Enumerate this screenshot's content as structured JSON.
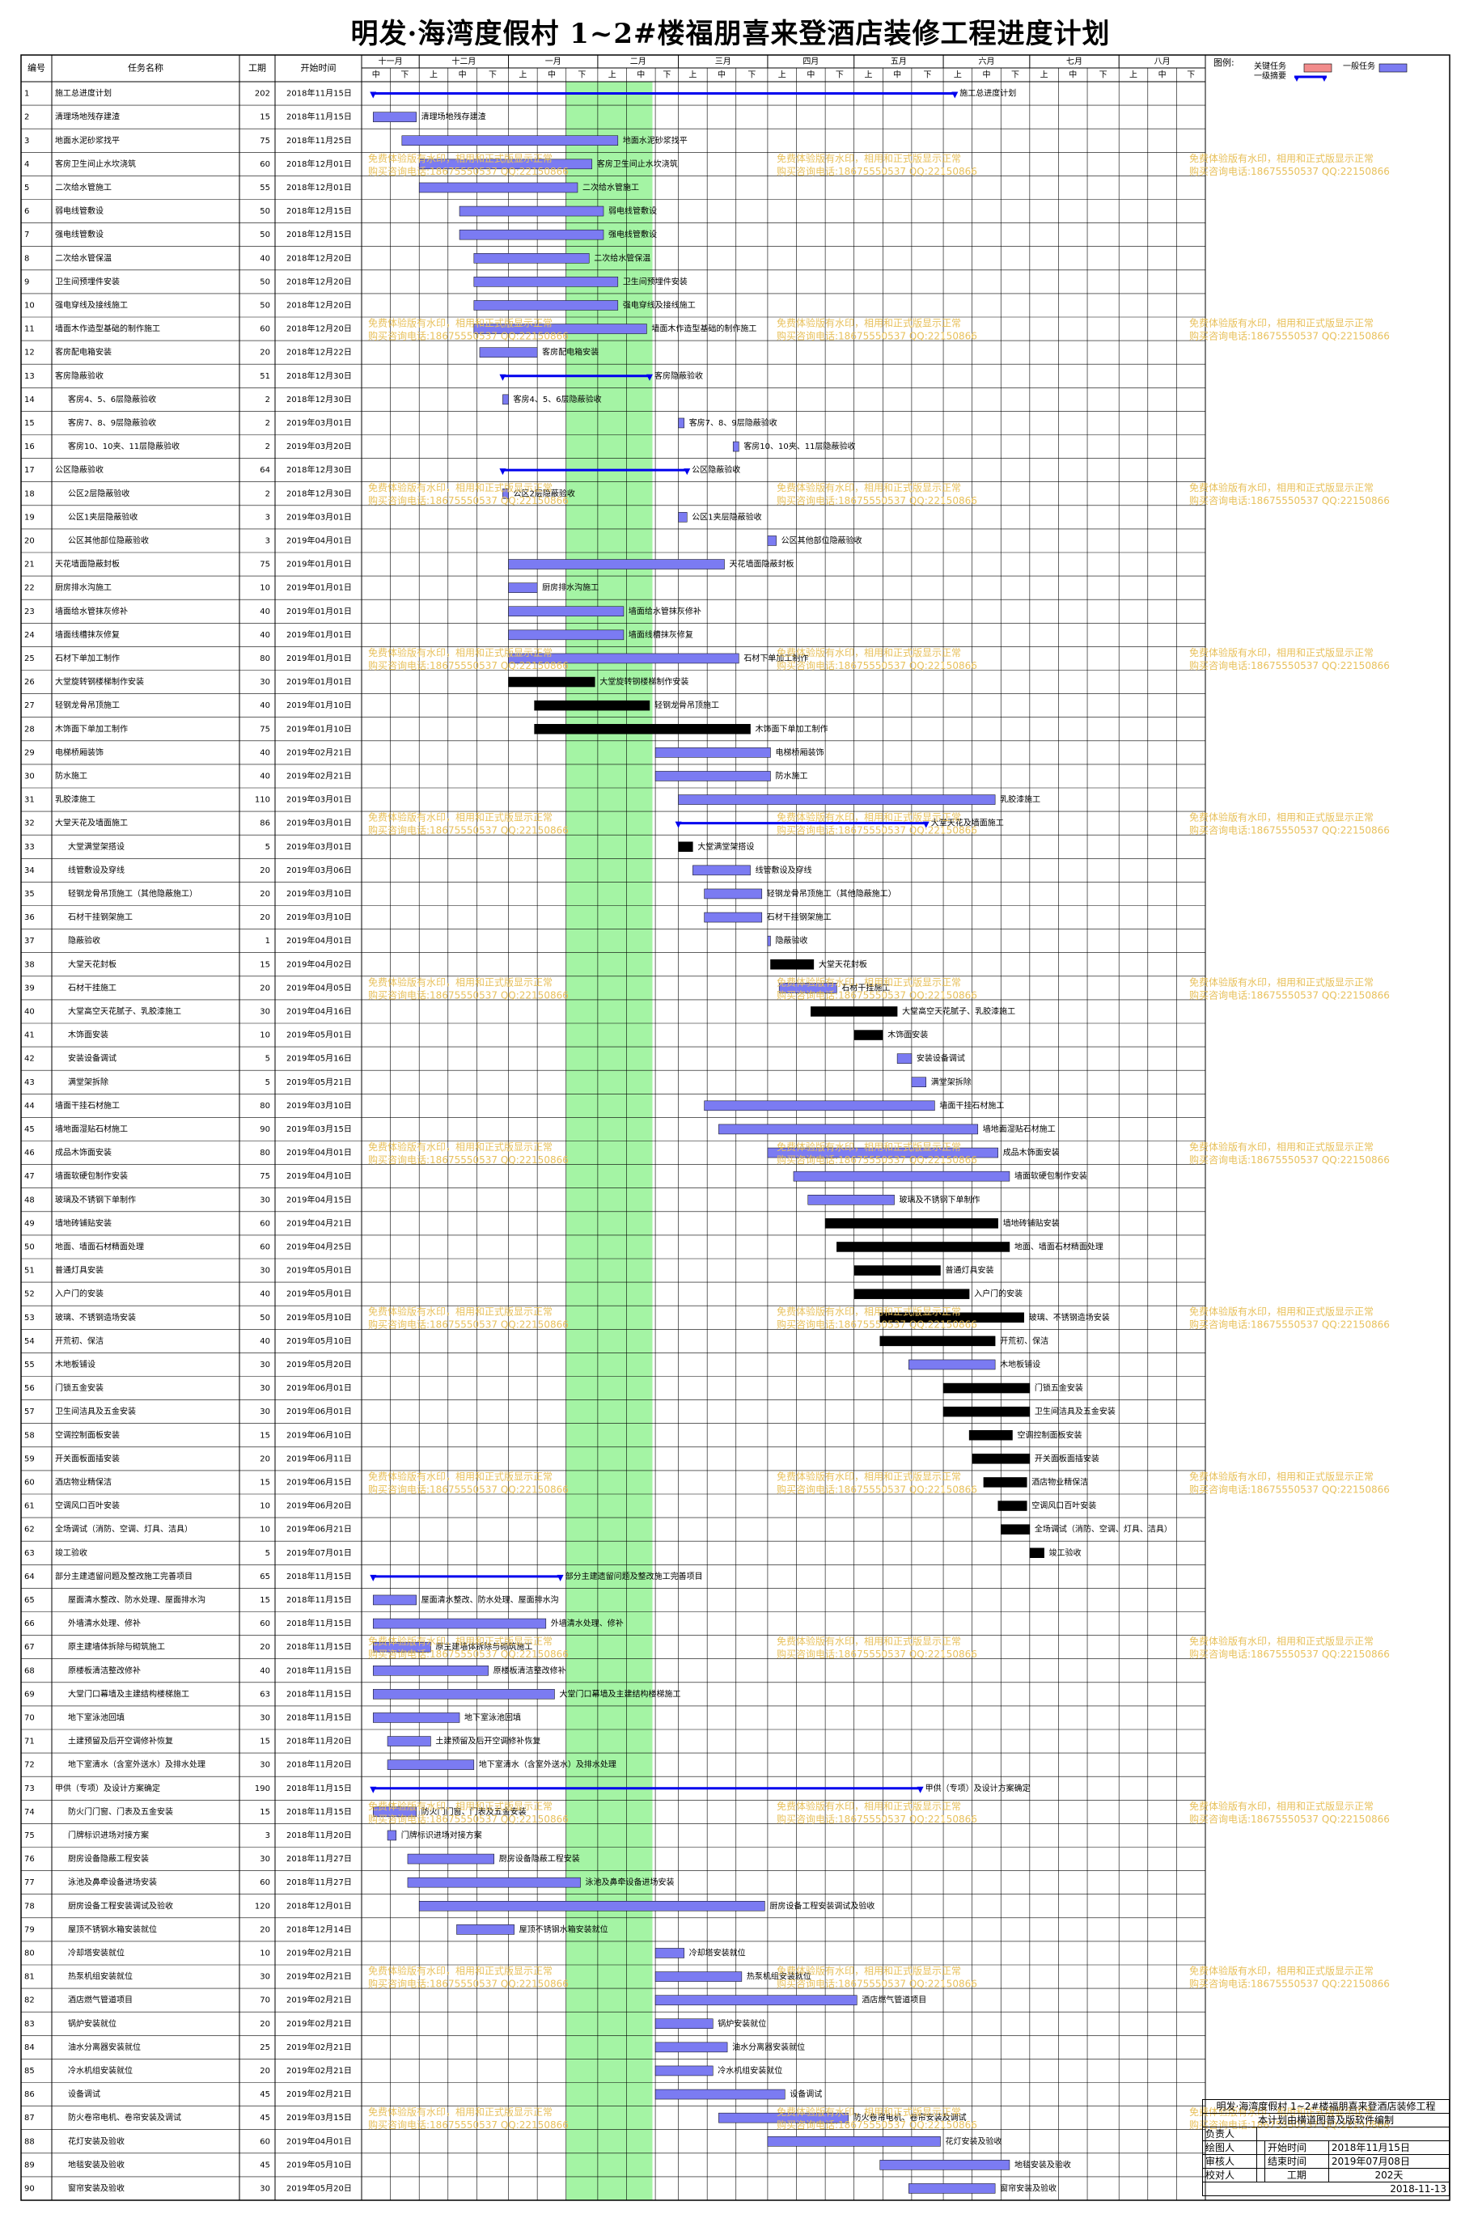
{
  "title": "明发·海湾度假村 1~2#楼福朋喜来登酒店装修工程进度计划",
  "headers": {
    "id": "编号",
    "name": "任务名称",
    "duration": "工期",
    "start": "开始时间"
  },
  "months": [
    "十一月",
    "十二月",
    "一月",
    "二月",
    "三月",
    "四月",
    "五月",
    "六月",
    "七月",
    "八月"
  ],
  "periods": [
    "中",
    "下",
    "上",
    "中",
    "下",
    "上",
    "中",
    "下",
    "上",
    "中",
    "下",
    "上",
    "中",
    "下",
    "上",
    "中",
    "下",
    "上",
    "中",
    "下",
    "上",
    "中",
    "下",
    "上",
    "中",
    "下",
    "上",
    "中",
    "下"
  ],
  "legend": {
    "label": "图例:",
    "critical": "关键任务",
    "normal": "一般任务",
    "summary": "一级摘要"
  },
  "colors": {
    "normal": "#7b7bf2",
    "critical": "#000000",
    "summary": "#0000ee",
    "holiday": "#a4f4a4",
    "critical_legend": "#f28c8c"
  },
  "watermark": {
    "line1": "免费体验版有水印，相用和正式版显示正常",
    "line2": "购买咨询电话:18675550537 QQ:22150866"
  },
  "info": {
    "project": "明发·海湾度假村 1~2#楼福朋喜来登酒店装修工程",
    "subtitle": "本计划由横道图普及版软件编制",
    "responsible_label": "负责人",
    "drawer_label": "绘图人",
    "reviewer_label": "审核人",
    "checker_label": "校对人",
    "start_label": "开始时间",
    "start_value": "2018年11月15日",
    "end_label": "结束时间",
    "end_value": "2019年07月08日",
    "duration_label": "工期",
    "duration_value": "202天",
    "date": "2018-11-13"
  },
  "chart_data": {
    "type": "gantt",
    "timeline_start": "2018-11-11",
    "timeline_end": "2019-08-31",
    "holiday_band": [
      "2019-01-21",
      "2019-02-20"
    ],
    "tasks": [
      {
        "id": 1,
        "name": "施工总进度计划",
        "duration": 202,
        "start": "2018年11月15日",
        "type": "summary",
        "label": "施工总进度计划"
      },
      {
        "id": 2,
        "name": "清理场地残存建渣",
        "duration": 15,
        "start": "2018年11月15日",
        "type": "normal",
        "label": "清理场地残存建渣"
      },
      {
        "id": 3,
        "name": "地面水泥砂浆找平",
        "duration": 75,
        "start": "2018年11月25日",
        "type": "normal",
        "label": "地面水泥砂浆找平"
      },
      {
        "id": 4,
        "name": "客房卫生间止水坎浇筑",
        "duration": 60,
        "start": "2018年12月01日",
        "type": "normal",
        "label": "客房卫生间止水坎浇筑"
      },
      {
        "id": 5,
        "name": "二次给水管施工",
        "duration": 55,
        "start": "2018年12月01日",
        "type": "normal",
        "label": "二次给水管施工"
      },
      {
        "id": 6,
        "name": "弱电线管敷设",
        "duration": 50,
        "start": "2018年12月15日",
        "type": "normal",
        "label": "弱电线管敷设"
      },
      {
        "id": 7,
        "name": "强电线管敷设",
        "duration": 50,
        "start": "2018年12月15日",
        "type": "normal",
        "label": "强电线管敷设"
      },
      {
        "id": 8,
        "name": "二次给水管保温",
        "duration": 40,
        "start": "2018年12月20日",
        "type": "normal",
        "label": "二次给水管保温"
      },
      {
        "id": 9,
        "name": "卫生间预埋件安装",
        "duration": 50,
        "start": "2018年12月20日",
        "type": "normal",
        "label": "卫生间预埋件安装"
      },
      {
        "id": 10,
        "name": "强电穿线及接线施工",
        "duration": 50,
        "start": "2018年12月20日",
        "type": "normal",
        "label": "强电穿线及接线施工"
      },
      {
        "id": 11,
        "name": "墙面木作造型基础的制作施工",
        "duration": 60,
        "start": "2018年12月20日",
        "type": "normal",
        "label": "墙面木作造型基础的制作施工"
      },
      {
        "id": 12,
        "name": "客房配电箱安装",
        "duration": 20,
        "start": "2018年12月22日",
        "type": "normal",
        "label": "客房配电箱安装"
      },
      {
        "id": 13,
        "name": "客房隐蔽验收",
        "duration": 51,
        "start": "2018年12月30日",
        "type": "summary",
        "label": "客房隐蔽验收"
      },
      {
        "id": 14,
        "name": "客房4、5、6层隐蔽验收",
        "duration": 2,
        "start": "2018年12月30日",
        "type": "normal",
        "label": "客房4、5、6层隐蔽验收",
        "indent": true
      },
      {
        "id": 15,
        "name": "客房7、8、9层隐蔽验收",
        "duration": 2,
        "start": "2019年03月01日",
        "type": "normal",
        "label": "客房7、8、9层隐蔽验收",
        "indent": true
      },
      {
        "id": 16,
        "name": "客房10、10夹、11层隐蔽验收",
        "duration": 2,
        "start": "2019年03月20日",
        "type": "normal",
        "label": "客房10、10夹、11层隐蔽验收",
        "indent": true
      },
      {
        "id": 17,
        "name": "公区隐蔽验收",
        "duration": 64,
        "start": "2018年12月30日",
        "type": "summary",
        "label": "公区隐蔽验收"
      },
      {
        "id": 18,
        "name": "公区2层隐蔽验收",
        "duration": 2,
        "start": "2018年12月30日",
        "type": "normal",
        "label": "公区2层隐蔽验收",
        "indent": true
      },
      {
        "id": 19,
        "name": "公区1夹层隐蔽验收",
        "duration": 3,
        "start": "2019年03月01日",
        "type": "normal",
        "label": "公区1夹层隐蔽验收",
        "indent": true
      },
      {
        "id": 20,
        "name": "公区其他部位隐蔽验收",
        "duration": 3,
        "start": "2019年04月01日",
        "type": "normal",
        "label": "公区其他部位隐蔽验收",
        "indent": true
      },
      {
        "id": 21,
        "name": "天花墙面隐蔽封板",
        "duration": 75,
        "start": "2019年01月01日",
        "type": "normal",
        "label": "天花墙面隐蔽封板"
      },
      {
        "id": 22,
        "name": "厨房排水沟施工",
        "duration": 10,
        "start": "2019年01月01日",
        "type": "normal",
        "label": "厨房排水沟施工"
      },
      {
        "id": 23,
        "name": "墙面给水管抹灰修补",
        "duration": 40,
        "start": "2019年01月01日",
        "type": "normal",
        "label": "墙面给水管抹灰修补"
      },
      {
        "id": 24,
        "name": "墙面线槽抹灰修复",
        "duration": 40,
        "start": "2019年01月01日",
        "type": "normal",
        "label": "墙面线槽抹灰修复"
      },
      {
        "id": 25,
        "name": "石材下单加工制作",
        "duration": 80,
        "start": "2019年01月01日",
        "type": "normal",
        "label": "石材下单加工制作"
      },
      {
        "id": 26,
        "name": "大堂旋转钢楼梯制作安装",
        "duration": 30,
        "start": "2019年01月01日",
        "type": "critical",
        "label": "大堂旋转钢楼梯制作安装"
      },
      {
        "id": 27,
        "name": "轻钢龙骨吊顶施工",
        "duration": 40,
        "start": "2019年01月10日",
        "type": "critical",
        "label": "轻钢龙骨吊顶施工"
      },
      {
        "id": 28,
        "name": "木饰面下单加工制作",
        "duration": 75,
        "start": "2019年01月10日",
        "type": "critical",
        "label": "木饰面下单加工制作"
      },
      {
        "id": 29,
        "name": "电梯桥厢装饰",
        "duration": 40,
        "start": "2019年02月21日",
        "type": "normal",
        "label": "电梯桥厢装饰"
      },
      {
        "id": 30,
        "name": "防水施工",
        "duration": 40,
        "start": "2019年02月21日",
        "type": "normal",
        "label": "防水施工"
      },
      {
        "id": 31,
        "name": "乳胶漆施工",
        "duration": 110,
        "start": "2019年03月01日",
        "type": "normal",
        "label": "乳胶漆施工"
      },
      {
        "id": 32,
        "name": "大堂天花及墙面施工",
        "duration": 86,
        "start": "2019年03月01日",
        "type": "summary",
        "label": "大堂天花及墙面施工"
      },
      {
        "id": 33,
        "name": "大堂满堂架搭设",
        "duration": 5,
        "start": "2019年03月01日",
        "type": "critical",
        "label": "大堂满堂架搭设",
        "indent": true
      },
      {
        "id": 34,
        "name": "线管敷设及穿线",
        "duration": 20,
        "start": "2019年03月06日",
        "type": "normal",
        "label": "线管敷设及穿线",
        "indent": true
      },
      {
        "id": 35,
        "name": "轻钢龙骨吊顶施工（其他隐蔽施工）",
        "duration": 20,
        "start": "2019年03月10日",
        "type": "normal",
        "label": "轻钢龙骨吊顶施工（其他隐蔽施工）",
        "indent": true
      },
      {
        "id": 36,
        "name": "石材干挂钢架施工",
        "duration": 20,
        "start": "2019年03月10日",
        "type": "normal",
        "label": "石材干挂钢架施工",
        "indent": true
      },
      {
        "id": 37,
        "name": "隐蔽验收",
        "duration": 1,
        "start": "2019年04月01日",
        "type": "normal",
        "label": "隐蔽验收",
        "indent": true
      },
      {
        "id": 38,
        "name": "大堂天花封板",
        "duration": 15,
        "start": "2019年04月02日",
        "type": "critical",
        "label": "大堂天花封板",
        "indent": true
      },
      {
        "id": 39,
        "name": "石材干挂施工",
        "duration": 20,
        "start": "2019年04月05日",
        "type": "normal",
        "label": "石材干挂施工",
        "indent": true
      },
      {
        "id": 40,
        "name": "大堂高空天花腻子、乳胶漆施工",
        "duration": 30,
        "start": "2019年04月16日",
        "type": "critical",
        "label": "大堂高空天花腻子、乳胶漆施工",
        "indent": true
      },
      {
        "id": 41,
        "name": "木饰面安装",
        "duration": 10,
        "start": "2019年05月01日",
        "type": "critical",
        "label": "木饰面安装",
        "indent": true
      },
      {
        "id": 42,
        "name": "安装设备调试",
        "duration": 5,
        "start": "2019年05月16日",
        "type": "normal",
        "label": "安装设备调试",
        "indent": true
      },
      {
        "id": 43,
        "name": "满堂架拆除",
        "duration": 5,
        "start": "2019年05月21日",
        "type": "normal",
        "label": "满堂架拆除",
        "indent": true
      },
      {
        "id": 44,
        "name": "墙面干挂石材施工",
        "duration": 80,
        "start": "2019年03月10日",
        "type": "normal",
        "label": "墙面干挂石材施工"
      },
      {
        "id": 45,
        "name": "墙地面湿贴石材施工",
        "duration": 90,
        "start": "2019年03月15日",
        "type": "normal",
        "label": "墙地面湿贴石材施工"
      },
      {
        "id": 46,
        "name": "成品木饰面安装",
        "duration": 80,
        "start": "2019年04月01日",
        "type": "normal",
        "label": "成品木饰面安装"
      },
      {
        "id": 47,
        "name": "墙面软硬包制作安装",
        "duration": 75,
        "start": "2019年04月10日",
        "type": "normal",
        "label": "墙面软硬包制作安装"
      },
      {
        "id": 48,
        "name": "玻璃及不锈钢下单制作",
        "duration": 30,
        "start": "2019年04月15日",
        "type": "normal",
        "label": "玻璃及不锈钢下单制作"
      },
      {
        "id": 49,
        "name": "墙地砖铺贴安装",
        "duration": 60,
        "start": "2019年04月21日",
        "type": "critical",
        "label": "墙地砖铺贴安装"
      },
      {
        "id": 50,
        "name": "地面、墙面石材精面处理",
        "duration": 60,
        "start": "2019年04月25日",
        "type": "critical",
        "label": "地面、墙面石材精面处理"
      },
      {
        "id": 51,
        "name": "普通灯具安装",
        "duration": 30,
        "start": "2019年05月01日",
        "type": "critical",
        "label": "普通灯具安装"
      },
      {
        "id": 52,
        "name": "入户门的安装",
        "duration": 40,
        "start": "2019年05月01日",
        "type": "critical",
        "label": "入户门的安装"
      },
      {
        "id": 53,
        "name": "玻璃、不锈钢造场安装",
        "duration": 50,
        "start": "2019年05月10日",
        "type": "critical",
        "label": "玻璃、不锈钢造场安装"
      },
      {
        "id": 54,
        "name": "开荒初、保洁",
        "duration": 40,
        "start": "2019年05月10日",
        "type": "critical",
        "label": "开荒初、保洁"
      },
      {
        "id": 55,
        "name": "木地板铺设",
        "duration": 30,
        "start": "2019年05月20日",
        "type": "normal",
        "label": "木地板铺设"
      },
      {
        "id": 56,
        "name": "门锁五金安装",
        "duration": 30,
        "start": "2019年06月01日",
        "type": "critical",
        "label": "门锁五金安装"
      },
      {
        "id": 57,
        "name": "卫生间洁具及五金安装",
        "duration": 30,
        "start": "2019年06月01日",
        "type": "critical",
        "label": "卫生间洁具及五金安装"
      },
      {
        "id": 58,
        "name": "空调控制面板安装",
        "duration": 15,
        "start": "2019年06月10日",
        "type": "critical",
        "label": "空调控制面板安装"
      },
      {
        "id": 59,
        "name": "开关面板面插安装",
        "duration": 20,
        "start": "2019年06月11日",
        "type": "critical",
        "label": "开关面板面插安装"
      },
      {
        "id": 60,
        "name": "酒店物业精保洁",
        "duration": 15,
        "start": "2019年06月15日",
        "type": "critical",
        "label": "酒店物业精保洁"
      },
      {
        "id": 61,
        "name": "空调风口百叶安装",
        "duration": 10,
        "start": "2019年06月20日",
        "type": "critical",
        "label": "空调风口百叶安装"
      },
      {
        "id": 62,
        "name": "全场调试（消防、空调、灯具、洁具）",
        "duration": 10,
        "start": "2019年06月21日",
        "type": "critical",
        "label": "全场调试（消防、空调、灯具、洁具）"
      },
      {
        "id": 63,
        "name": "竣工验收",
        "duration": 5,
        "start": "2019年07月01日",
        "type": "critical",
        "label": "竣工验收"
      },
      {
        "id": 64,
        "name": "部分主建遗留问题及整改施工完善项目",
        "duration": 65,
        "start": "2018年11月15日",
        "type": "summary",
        "label": "部分主建遗留问题及整改施工完善项目"
      },
      {
        "id": 65,
        "name": "屋面清水整改、防水处理、屋面排水沟",
        "duration": 15,
        "start": "2018年11月15日",
        "type": "normal",
        "label": "屋面清水整改、防水处理、屋面排水沟",
        "indent": true
      },
      {
        "id": 66,
        "name": "外墙清水处理、修补",
        "duration": 60,
        "start": "2018年11月15日",
        "type": "normal",
        "label": "外墙清水处理、修补",
        "indent": true
      },
      {
        "id": 67,
        "name": "原主建墙体拆除与砌筑施工",
        "duration": 20,
        "start": "2018年11月15日",
        "type": "normal",
        "label": "原主建墙体拆除与砌筑施工",
        "indent": true
      },
      {
        "id": 68,
        "name": "原楼板清洁整改修补",
        "duration": 40,
        "start": "2018年11月15日",
        "type": "normal",
        "label": "原楼板清洁整改修补",
        "indent": true
      },
      {
        "id": 69,
        "name": "大堂门口幕墙及主建结构楼梯施工",
        "duration": 63,
        "start": "2018年11月15日",
        "type": "normal",
        "label": "大堂门口幕墙及主建结构楼梯施工",
        "indent": true
      },
      {
        "id": 70,
        "name": "地下室泳池回填",
        "duration": 30,
        "start": "2018年11月15日",
        "type": "normal",
        "label": "地下室泳池回填",
        "indent": true
      },
      {
        "id": 71,
        "name": "土建预留及后开空调修补恢复",
        "duration": 15,
        "start": "2018年11月20日",
        "type": "normal",
        "label": "土建预留及后开空调修补恢复",
        "indent": true
      },
      {
        "id": 72,
        "name": "地下室清水（含室外送水）及排水处理",
        "duration": 30,
        "start": "2018年11月20日",
        "type": "normal",
        "label": "地下室清水（含室外送水）及排水处理",
        "indent": true
      },
      {
        "id": 73,
        "name": "甲供（专项）及设计方案确定",
        "duration": 190,
        "start": "2018年11月15日",
        "type": "summary",
        "label": "甲供（专项）及设计方案确定"
      },
      {
        "id": 74,
        "name": "防火门门窗、门表及五金安装",
        "duration": 15,
        "start": "2018年11月15日",
        "type": "normal",
        "label": "防火门门窗、门表及五金安装",
        "indent": true
      },
      {
        "id": 75,
        "name": "门牌标识进场对接方案",
        "duration": 3,
        "start": "2018年11月20日",
        "type": "normal",
        "label": "门牌标识进场对接方案",
        "indent": true
      },
      {
        "id": 76,
        "name": "厨房设备隐蔽工程安装",
        "duration": 30,
        "start": "2018年11月27日",
        "type": "normal",
        "label": "厨房设备隐蔽工程安装",
        "indent": true
      },
      {
        "id": 77,
        "name": "泳池及鼻牵设备进场安装",
        "duration": 60,
        "start": "2018年11月27日",
        "type": "normal",
        "label": "泳池及鼻牵设备进场安装",
        "indent": true
      },
      {
        "id": 78,
        "name": "厨房设备工程安装调试及验收",
        "duration": 120,
        "start": "2018年12月01日",
        "type": "normal",
        "label": "厨房设备工程安装调试及验收",
        "indent": true
      },
      {
        "id": 79,
        "name": "屋顶不锈钢水箱安装就位",
        "duration": 20,
        "start": "2018年12月14日",
        "type": "normal",
        "label": "屋顶不锈钢水箱安装就位",
        "indent": true
      },
      {
        "id": 80,
        "name": "冷却塔安装就位",
        "duration": 10,
        "start": "2019年02月21日",
        "type": "normal",
        "label": "冷却塔安装就位",
        "indent": true
      },
      {
        "id": 81,
        "name": "热泵机组安装就位",
        "duration": 30,
        "start": "2019年02月21日",
        "type": "normal",
        "label": "热泵机组安装就位",
        "indent": true
      },
      {
        "id": 82,
        "name": "酒店燃气管道项目",
        "duration": 70,
        "start": "2019年02月21日",
        "type": "normal",
        "label": "酒店燃气管道项目",
        "indent": true
      },
      {
        "id": 83,
        "name": "锅炉安装就位",
        "duration": 20,
        "start": "2019年02月21日",
        "type": "normal",
        "label": "锅炉安装就位",
        "indent": true
      },
      {
        "id": 84,
        "name": "油水分离器安装就位",
        "duration": 25,
        "start": "2019年02月21日",
        "type": "normal",
        "label": "油水分离器安装就位",
        "indent": true
      },
      {
        "id": 85,
        "name": "冷水机组安装就位",
        "duration": 20,
        "start": "2019年02月21日",
        "type": "normal",
        "label": "冷水机组安装就位",
        "indent": true
      },
      {
        "id": 86,
        "name": "设备调试",
        "duration": 45,
        "start": "2019年02月21日",
        "type": "normal",
        "label": "设备调试",
        "indent": true
      },
      {
        "id": 87,
        "name": "防火卷帘电机、卷帘安装及调试",
        "duration": 45,
        "start": "2019年03月15日",
        "type": "normal",
        "label": "防火卷帘电机、卷帘安装及调试",
        "indent": true
      },
      {
        "id": 88,
        "name": "花灯安装及验收",
        "duration": 60,
        "start": "2019年04月01日",
        "type": "normal",
        "label": "花灯安装及验收",
        "indent": true
      },
      {
        "id": 89,
        "name": "地毯安装及验收",
        "duration": 45,
        "start": "2019年05月10日",
        "type": "normal",
        "label": "地毯安装及验收",
        "indent": true
      },
      {
        "id": 90,
        "name": "窗帘安装及验收",
        "duration": 30,
        "start": "2019年05月20日",
        "type": "normal",
        "label": "窗帘安装及验收",
        "indent": true
      }
    ]
  }
}
